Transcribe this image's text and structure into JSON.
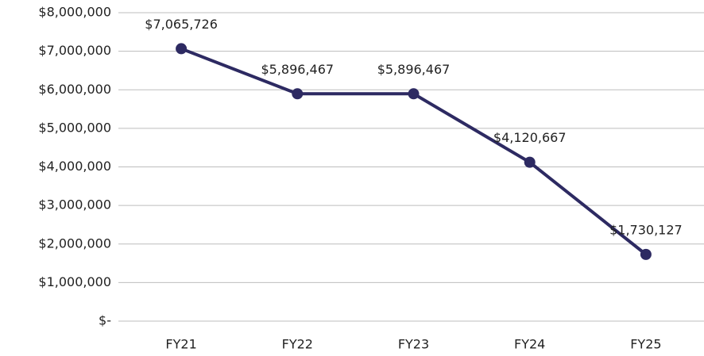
{
  "chart_data": {
    "type": "line",
    "categories": [
      "FY21",
      "FY22",
      "FY23",
      "FY24",
      "FY25"
    ],
    "series": [
      {
        "color": "#2d2a62",
        "values": [
          7065726,
          5896467,
          5896467,
          4120667,
          1730127
        ],
        "value_labels": [
          "$7,065,726",
          "$5,896,467",
          "$5,896,467",
          "$4,120,667",
          "$1,730,127"
        ]
      }
    ],
    "ylim": [
      0,
      8000000
    ],
    "yticks": [
      {
        "value": 0,
        "label": "$-"
      },
      {
        "value": 1000000,
        "label": "$1,000,000"
      },
      {
        "value": 2000000,
        "label": "$2,000,000"
      },
      {
        "value": 3000000,
        "label": "$3,000,000"
      },
      {
        "value": 4000000,
        "label": "$4,000,000"
      },
      {
        "value": 5000000,
        "label": "$5,000,000"
      },
      {
        "value": 6000000,
        "label": "$6,000,000"
      },
      {
        "value": 7000000,
        "label": "$7,000,000"
      },
      {
        "value": 8000000,
        "label": "$8,000,000"
      }
    ],
    "grid": true
  }
}
